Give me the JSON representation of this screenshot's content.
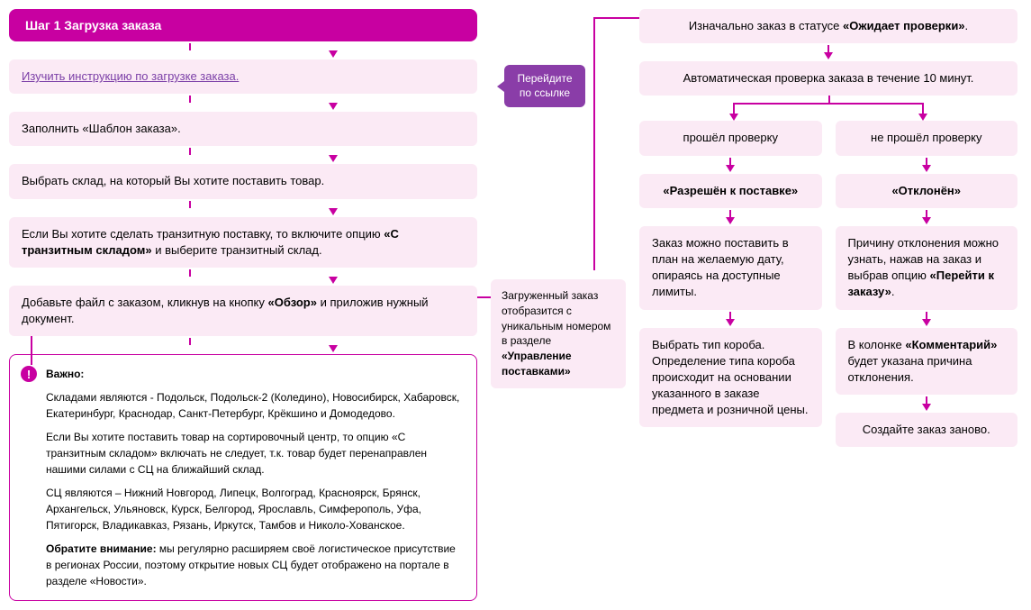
{
  "type": "flowchart",
  "colors": {
    "primary": "#c800a1",
    "box_bg": "#fbeaf5",
    "tooltip_bg": "#8a3da8",
    "link": "#7b3fa7",
    "text": "#000000",
    "white": "#ffffff"
  },
  "header": {
    "label": "Шаг 1  Загрузка заказа"
  },
  "tooltip": {
    "text": "Перейдите по ссылке"
  },
  "left_steps": [
    {
      "html": "<span class='link-text'>Изучить инструкцию по загрузке заказа.</span>"
    },
    {
      "html": "Заполнить «Шаблон заказа»."
    },
    {
      "html": "Выбрать склад, на который Вы хотите поставить товар."
    },
    {
      "html": "Если Вы хотите сделать транзитную поставку, то включите опцию <b>«С транзитным складом»</b> и выберите транзитный склад."
    },
    {
      "html": "Добавьте файл с заказом, кликнув на кнопку <b>«Обзор»</b> и приложив нужный документ."
    }
  ],
  "important": {
    "title": "Важно:",
    "p1": "Складами являются - Подольск, Подольск-2 (Коледино), Новосибирск, Хабаровск, Екатеринбург, Краснодар, Санкт-Петербург, Крёкшино и Домодедово.",
    "p2": "Если Вы хотите поставить товар на сортировочный центр, то опцию «С транзитным складом» включать не следует, т.к. товар будет перенаправлен нашими силами с СЦ на ближайший склад.",
    "p3": "СЦ являются – Нижний Новгород, Липецк, Волгоград, Красноярск, Брянск, Архангельск, Ульяновск, Курск, Белгород, Ярославль, Симферополь, Уфа, Пятигорск, Владикавказ, Рязань, Иркутск, Тамбов и Николо-Хованское.",
    "p4_prefix": "Обратите внимание:",
    "p4": " мы регулярно расширяем своё логистическое присутствие в регионах России, поэтому открытие новых СЦ будет отображено на портале в разделе «Новости»."
  },
  "mid_box": {
    "html": "Загруженный заказ отобразится с уникальным номером в разделе <b>«Управление поставками»</b>"
  },
  "right": {
    "top1": "Изначально заказ в статусе <b>«Ожидает проверки»</b>.",
    "top2": "Автоматическая проверка заказа в течение 10 минут.",
    "left_branch": {
      "b1": "прошёл проверку",
      "b2": "<b>«Разрешён к поставке»</b>",
      "b3": "Заказ можно поставить в план на желаемую дату, опираясь на доступные лимиты.",
      "b4": "Выбрать тип короба. Определение типа короба происходит на основании указанного в заказе предмета и розничной цены."
    },
    "right_branch": {
      "b1": "не прошёл проверку",
      "b2": "<b>«Отклонён»</b>",
      "b3": "Причину отклонения можно узнать, нажав на заказ и выбрав опцию <b>«Перейти к заказу»</b>.",
      "b4": "В колонке <b>«Комментарий»</b> будет указана причина отклонения.",
      "b5": "Создайте заказ заново."
    }
  }
}
